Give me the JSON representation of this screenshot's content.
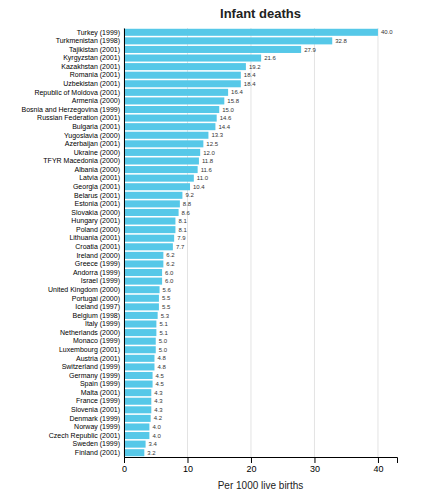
{
  "chart_data": {
    "type": "bar",
    "orientation": "horizontal",
    "title": "Infant deaths",
    "xlabel": "Per 1000 live births",
    "categories": [
      "Turkey (1999)",
      "Turkmenistan (1998)",
      "Tajikistan (2001)",
      "Kyrgyzstan (2001)",
      "Kazakhstan (2001)",
      "Romania (2001)",
      "Uzbekistan (2001)",
      "Republic of Moldova (2001)",
      "Armenia (2000)",
      "Bosnia and Herzegovina (1999)",
      "Russian Federation (2001)",
      "Bulgaria (2001)",
      "Yugoslavia (2000)",
      "Azerbaijan (2001)",
      "Ukraine (2000)",
      "TFYR Macedonia (2000)",
      "Albania (2000)",
      "Latvia (2001)",
      "Georgia (2001)",
      "Belarus (2001)",
      "Estonia (2001)",
      "Slovakia (2000)",
      "Hungary (2001)",
      "Poland (2000)",
      "Lithuania (2001)",
      "Croatia (2001)",
      "Ireland (2000)",
      "Greece (1999)",
      "Andorra (1999)",
      "Israel (1999)",
      "United Kingdom (2000)",
      "Portugal (2000)",
      "Iceland (1997)",
      "Belgium (1998)",
      "Italy (1999)",
      "Netherlands (2000)",
      "Monaco (1999)",
      "Luxembourg (2001)",
      "Austria (2001)",
      "Switzerland (1999)",
      "Germany (1999)",
      "Spain (1999)",
      "Malta (2001)",
      "France (1999)",
      "Slovenia (2001)",
      "Denmark (1999)",
      "Norway (1999)",
      "Czech Republic (2001)",
      "Sweden (1999)",
      "Finland (2001)"
    ],
    "values": [
      40.0,
      32.8,
      27.9,
      21.6,
      19.2,
      18.4,
      18.4,
      16.4,
      15.8,
      15.0,
      14.6,
      14.4,
      13.3,
      12.5,
      12.0,
      11.8,
      11.6,
      11.0,
      10.4,
      9.2,
      8.8,
      8.6,
      8.1,
      8.1,
      7.9,
      7.7,
      6.2,
      6.2,
      6.0,
      6.0,
      5.6,
      5.5,
      5.5,
      5.3,
      5.1,
      5.1,
      5.0,
      5.0,
      4.8,
      4.8,
      4.5,
      4.5,
      4.3,
      4.3,
      4.3,
      4.2,
      4.0,
      4.0,
      3.4,
      3.2
    ],
    "value_labels": [
      "40.0",
      "32.8",
      "27.9",
      "21.6",
      "19.2",
      "18.4",
      "18.4",
      "16.4",
      "15.8",
      "15.0",
      "14.6",
      "14.4",
      "13.3",
      "12.5",
      "12.0",
      "11.8",
      "11.6",
      "11.0",
      "10.4",
      "9.2",
      "8.8",
      "8.6",
      "8.1",
      "8.1",
      "7.9",
      "7.7",
      "6.2",
      "6.2",
      "6.0",
      "6.0",
      "5.6",
      "5.5",
      "5.5",
      "5.3",
      "5.1",
      "5.1",
      "5.0",
      "5.0",
      "4.8",
      "4.8",
      "4.5",
      "4.5",
      "4.3",
      "4.3",
      "4.3",
      "4.2",
      "4.0",
      "4.0",
      "3.4",
      "3.2"
    ],
    "color": "#56c8e8",
    "xlim": [
      0,
      43
    ],
    "xticks": [
      0,
      10,
      20,
      30,
      40
    ],
    "grid": true,
    "data_labels": true
  }
}
